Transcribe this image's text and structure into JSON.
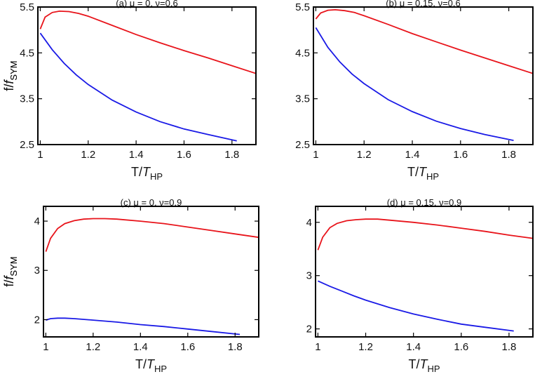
{
  "chart_data": [
    {
      "type": "line",
      "title": "(a) μ = 0, ν=0.6",
      "xlabel": {
        "main": "T/",
        "italic": "T",
        "sub": "HP"
      },
      "ylabel": {
        "main": "f/",
        "italic": "f",
        "sub": "SYM"
      },
      "xlim": [
        0.99,
        1.9
      ],
      "ylim": [
        2.5,
        5.5
      ],
      "xticks": [
        1,
        1.2,
        1.4,
        1.6,
        1.8
      ],
      "xtick_labels": [
        "1",
        "1.2",
        "1.4",
        "1.6",
        "1.8"
      ],
      "yticks": [
        2.5,
        3.5,
        4.5,
        5.5
      ],
      "ytick_labels": [
        "2.5",
        "3.5",
        "4.5",
        "5.5"
      ],
      "grid": false,
      "series": [
        {
          "color": "#e8141b",
          "x": [
            1.0,
            1.02,
            1.05,
            1.08,
            1.12,
            1.16,
            1.2,
            1.3,
            1.4,
            1.5,
            1.6,
            1.7,
            1.8,
            1.9
          ],
          "y": [
            5.02,
            5.28,
            5.38,
            5.41,
            5.4,
            5.36,
            5.3,
            5.1,
            4.9,
            4.72,
            4.55,
            4.39,
            4.22,
            4.05
          ]
        },
        {
          "color": "#1a1ae6",
          "x": [
            1.0,
            1.05,
            1.1,
            1.15,
            1.2,
            1.3,
            1.4,
            1.5,
            1.6,
            1.7,
            1.82
          ],
          "y": [
            4.93,
            4.57,
            4.27,
            4.02,
            3.81,
            3.47,
            3.21,
            3.0,
            2.84,
            2.72,
            2.58
          ]
        }
      ]
    },
    {
      "type": "line",
      "title": "(b) μ = 0.15, ν=0.6",
      "xlabel": {
        "main": "T/",
        "italic": "T",
        "sub": "HP"
      },
      "ylabel": {
        "main": "f/",
        "italic": "f",
        "sub": "SYM"
      },
      "xlim": [
        0.99,
        1.9
      ],
      "ylim": [
        2.5,
        5.5
      ],
      "xticks": [
        1,
        1.2,
        1.4,
        1.6,
        1.8
      ],
      "xtick_labels": [
        "1",
        "1.2",
        "1.4",
        "1.6",
        "1.8"
      ],
      "yticks": [
        2.5,
        3.5,
        4.5,
        5.5
      ],
      "ytick_labels": [
        "2.5",
        "3.5",
        "4.5",
        "5.5"
      ],
      "grid": false,
      "series": [
        {
          "color": "#e8141b",
          "x": [
            1.0,
            1.02,
            1.05,
            1.08,
            1.12,
            1.16,
            1.2,
            1.3,
            1.4,
            1.5,
            1.6,
            1.7,
            1.8,
            1.9
          ],
          "y": [
            5.24,
            5.37,
            5.43,
            5.44,
            5.42,
            5.38,
            5.31,
            5.12,
            4.92,
            4.74,
            4.56,
            4.39,
            4.22,
            4.05
          ]
        },
        {
          "color": "#1a1ae6",
          "x": [
            1.0,
            1.05,
            1.1,
            1.15,
            1.2,
            1.3,
            1.4,
            1.5,
            1.6,
            1.7,
            1.82
          ],
          "y": [
            5.05,
            4.62,
            4.3,
            4.04,
            3.83,
            3.48,
            3.22,
            3.01,
            2.85,
            2.72,
            2.59
          ]
        }
      ]
    },
    {
      "type": "line",
      "title": "(c) μ = 0, ν=0.9",
      "xlabel": {
        "main": "T/",
        "italic": "T",
        "sub": "HP"
      },
      "ylabel": {
        "main": "f/",
        "italic": "f",
        "sub": "SYM"
      },
      "xlim": [
        0.99,
        1.9
      ],
      "ylim": [
        1.65,
        4.3
      ],
      "xticks": [
        1,
        1.2,
        1.4,
        1.6,
        1.8
      ],
      "xtick_labels": [
        "1",
        "1.2",
        "1.4",
        "1.6",
        "1.8"
      ],
      "yticks": [
        2,
        3,
        4
      ],
      "ytick_labels": [
        "2",
        "3",
        "4"
      ],
      "grid": false,
      "series": [
        {
          "color": "#e8141b",
          "x": [
            1.0,
            1.02,
            1.05,
            1.08,
            1.12,
            1.16,
            1.2,
            1.25,
            1.3,
            1.4,
            1.5,
            1.6,
            1.7,
            1.8,
            1.9
          ],
          "y": [
            3.38,
            3.65,
            3.85,
            3.95,
            4.01,
            4.04,
            4.05,
            4.05,
            4.04,
            4.0,
            3.95,
            3.88,
            3.81,
            3.74,
            3.67
          ]
        },
        {
          "color": "#1a1ae6",
          "x": [
            1.0,
            1.02,
            1.05,
            1.08,
            1.12,
            1.2,
            1.3,
            1.4,
            1.5,
            1.6,
            1.7,
            1.82
          ],
          "y": [
            1.99,
            2.02,
            2.03,
            2.03,
            2.02,
            1.99,
            1.95,
            1.9,
            1.86,
            1.81,
            1.76,
            1.7
          ]
        }
      ]
    },
    {
      "type": "line",
      "title": "(d) μ = 0.15, ν=0.9",
      "xlabel": {
        "main": "T/",
        "italic": "T",
        "sub": "HP"
      },
      "ylabel": {
        "main": "f/",
        "italic": "f",
        "sub": "SYM"
      },
      "xlim": [
        0.99,
        1.9
      ],
      "ylim": [
        1.85,
        4.3
      ],
      "xticks": [
        1,
        1.2,
        1.4,
        1.6,
        1.8
      ],
      "xtick_labels": [
        "1",
        "1.2",
        "1.4",
        "1.6",
        "1.8"
      ],
      "yticks": [
        2,
        3,
        4
      ],
      "ytick_labels": [
        "2",
        "3",
        "4"
      ],
      "grid": false,
      "series": [
        {
          "color": "#e8141b",
          "x": [
            1.0,
            1.02,
            1.05,
            1.08,
            1.12,
            1.16,
            1.2,
            1.25,
            1.3,
            1.4,
            1.5,
            1.6,
            1.7,
            1.8,
            1.9
          ],
          "y": [
            3.48,
            3.72,
            3.9,
            3.98,
            4.03,
            4.05,
            4.06,
            4.06,
            4.04,
            4.0,
            3.95,
            3.89,
            3.83,
            3.76,
            3.7
          ]
        },
        {
          "color": "#1a1ae6",
          "x": [
            1.0,
            1.05,
            1.1,
            1.15,
            1.2,
            1.3,
            1.4,
            1.5,
            1.6,
            1.7,
            1.82
          ],
          "y": [
            2.9,
            2.8,
            2.71,
            2.62,
            2.54,
            2.4,
            2.28,
            2.18,
            2.09,
            2.03,
            1.96
          ]
        }
      ]
    }
  ]
}
